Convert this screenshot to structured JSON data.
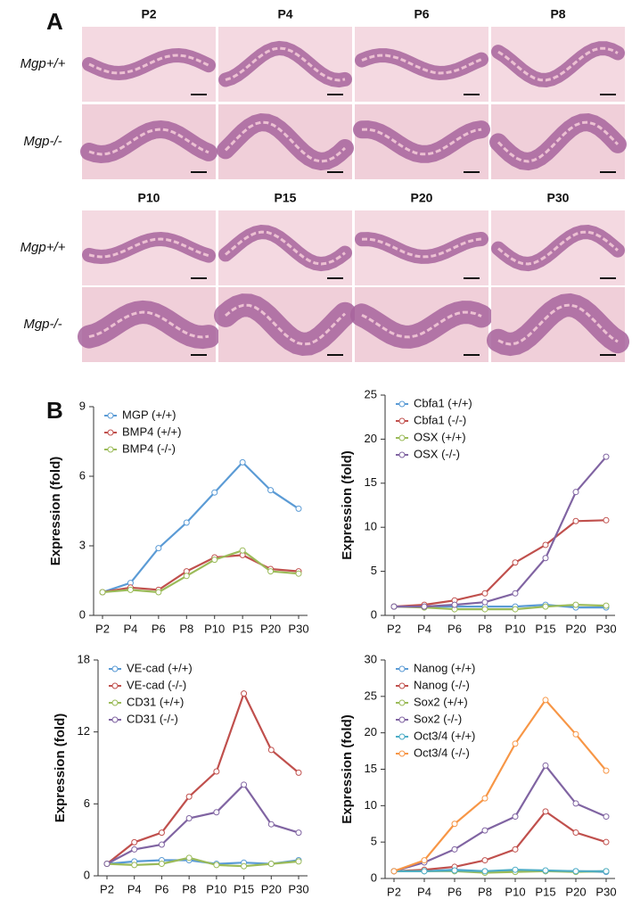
{
  "panel_a": {
    "label": "A",
    "timepoints_top": [
      "P2",
      "P4",
      "P6",
      "P8"
    ],
    "timepoints_bottom": [
      "P10",
      "P15",
      "P20",
      "P30"
    ],
    "genotypes": [
      "Mgp+/+",
      "Mgp-/-"
    ]
  },
  "panel_b_label": "B",
  "chart_data": [
    {
      "type": "line",
      "y_label": "Expression (fold)",
      "categories": [
        "P2",
        "P4",
        "P6",
        "P8",
        "P10",
        "P15",
        "P20",
        "P30"
      ],
      "ylim": [
        0,
        9
      ],
      "yticks": [
        0,
        3,
        6,
        9
      ],
      "series": [
        {
          "name": "MGP (+/+)",
          "color": "#5b9bd5",
          "values": [
            1.0,
            1.4,
            2.9,
            4.0,
            5.3,
            6.6,
            5.4,
            4.6
          ]
        },
        {
          "name": "BMP4 (+/+)",
          "color": "#c0504d",
          "values": [
            1.0,
            1.2,
            1.1,
            1.9,
            2.5,
            2.6,
            2.0,
            1.9
          ]
        },
        {
          "name": "BMP4 (-/-)",
          "color": "#9bbb59",
          "values": [
            1.0,
            1.1,
            1.0,
            1.7,
            2.4,
            2.8,
            1.9,
            1.8
          ]
        }
      ]
    },
    {
      "type": "line",
      "y_label": "Expression (fold)",
      "categories": [
        "P2",
        "P4",
        "P6",
        "P8",
        "P10",
        "P15",
        "P20",
        "P30"
      ],
      "ylim": [
        0,
        25
      ],
      "yticks": [
        0,
        5,
        10,
        15,
        20,
        25
      ],
      "series": [
        {
          "name": "Cbfa1 (+/+)",
          "color": "#5b9bd5",
          "values": [
            1.0,
            1.0,
            1.0,
            1.0,
            1.0,
            1.2,
            0.9,
            0.9
          ]
        },
        {
          "name": "Cbfa1 (-/-)",
          "color": "#c0504d",
          "values": [
            1.0,
            1.2,
            1.7,
            2.5,
            6.0,
            8.0,
            10.7,
            10.8
          ]
        },
        {
          "name": "OSX (+/+)",
          "color": "#9bbb59",
          "values": [
            1.0,
            0.9,
            0.7,
            0.7,
            0.7,
            1.0,
            1.2,
            1.1
          ]
        },
        {
          "name": "OSX (-/-)",
          "color": "#8064a2",
          "values": [
            1.0,
            1.0,
            1.2,
            1.5,
            2.5,
            6.5,
            14.0,
            18.0
          ]
        }
      ]
    },
    {
      "type": "line",
      "y_label": "Expression (fold)",
      "categories": [
        "P2",
        "P4",
        "P6",
        "P8",
        "P10",
        "P15",
        "P20",
        "P30"
      ],
      "ylim": [
        0,
        18
      ],
      "yticks": [
        0,
        6,
        12,
        18
      ],
      "series": [
        {
          "name": "VE-cad (+/+)",
          "color": "#5b9bd5",
          "values": [
            1.0,
            1.2,
            1.3,
            1.3,
            1.0,
            1.1,
            1.0,
            1.3
          ]
        },
        {
          "name": "VE-cad (-/-)",
          "color": "#c0504d",
          "values": [
            1.0,
            2.8,
            3.6,
            6.6,
            8.7,
            15.2,
            10.5,
            8.6
          ]
        },
        {
          "name": "CD31 (+/+)",
          "color": "#9bbb59",
          "values": [
            1.0,
            0.9,
            1.0,
            1.5,
            0.9,
            0.8,
            1.0,
            1.2
          ]
        },
        {
          "name": "CD31 (-/-)",
          "color": "#8064a2",
          "values": [
            1.0,
            2.2,
            2.6,
            4.8,
            5.3,
            7.6,
            4.3,
            3.6
          ]
        }
      ]
    },
    {
      "type": "line",
      "y_label": "Expression (fold)",
      "categories": [
        "P2",
        "P4",
        "P6",
        "P8",
        "P10",
        "P15",
        "P20",
        "P30"
      ],
      "ylim": [
        0,
        30
      ],
      "yticks": [
        0,
        5,
        10,
        15,
        20,
        25,
        30
      ],
      "series": [
        {
          "name": "Nanog (+/+)",
          "color": "#5b9bd5",
          "values": [
            1.0,
            1.0,
            1.2,
            1.0,
            1.0,
            1.0,
            1.0,
            0.9
          ]
        },
        {
          "name": "Nanog (-/-)",
          "color": "#c0504d",
          "values": [
            1.0,
            1.2,
            1.6,
            2.5,
            4.0,
            9.2,
            6.3,
            5.0
          ]
        },
        {
          "name": "Sox2 (+/+)",
          "color": "#9bbb59",
          "values": [
            1.0,
            1.0,
            1.0,
            0.8,
            0.9,
            1.0,
            0.9,
            1.0
          ]
        },
        {
          "name": "Sox2 (-/-)",
          "color": "#8064a2",
          "values": [
            1.0,
            2.2,
            4.0,
            6.6,
            8.5,
            15.5,
            10.3,
            8.5
          ]
        },
        {
          "name": "Oct3/4 (+/+)",
          "color": "#4bacc6",
          "values": [
            1.0,
            1.0,
            1.1,
            1.0,
            1.2,
            1.1,
            1.0,
            1.0
          ]
        },
        {
          "name": "Oct3/4 (-/-)",
          "color": "#f79646",
          "values": [
            1.0,
            2.5,
            7.5,
            11.0,
            18.5,
            24.5,
            19.8,
            14.8
          ]
        }
      ]
    }
  ]
}
